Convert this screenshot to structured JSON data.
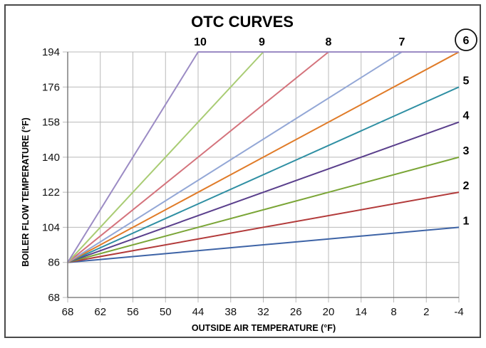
{
  "chart_data": {
    "type": "line",
    "title": "OTC CURVES",
    "xlabel": "OUTSIDE AIR TEMPERATURE (°F)",
    "ylabel": "BOILER FLOW TEMPERATURE (°F)",
    "x_ticks": [
      68,
      62,
      56,
      50,
      44,
      38,
      32,
      26,
      20,
      14,
      8,
      2,
      -4
    ],
    "x_tick_labels": [
      "68",
      "62",
      "56",
      "50",
      "44",
      "38",
      "32",
      "26",
      "20",
      "14",
      "8",
      "2",
      "-4"
    ],
    "y_ticks": [
      68,
      86,
      104,
      122,
      140,
      158,
      176,
      194
    ],
    "y_tick_labels": [
      "68",
      "86",
      "104",
      "122",
      "140",
      "158",
      "176",
      "194"
    ],
    "xlim": [
      68,
      -4
    ],
    "ylim": [
      68,
      194
    ],
    "grid": true,
    "highlighted_curve": "6",
    "series": [
      {
        "name": "1",
        "color": "#3d63a6",
        "x": [
          68,
          -4
        ],
        "y": [
          86,
          104
        ]
      },
      {
        "name": "2",
        "color": "#b23a3a",
        "x": [
          68,
          -4
        ],
        "y": [
          86,
          122
        ]
      },
      {
        "name": "3",
        "color": "#7aa536",
        "x": [
          68,
          -4
        ],
        "y": [
          86,
          140
        ]
      },
      {
        "name": "4",
        "color": "#5a3f8c",
        "x": [
          68,
          -4
        ],
        "y": [
          86,
          158
        ]
      },
      {
        "name": "5",
        "color": "#2f8fa3",
        "x": [
          68,
          -4
        ],
        "y": [
          86,
          176
        ]
      },
      {
        "name": "6",
        "color": "#e07b28",
        "x": [
          68,
          -4
        ],
        "y": [
          86,
          194
        ]
      },
      {
        "name": "7",
        "color": "#93a7d6",
        "x": [
          68,
          6.5,
          -4
        ],
        "y": [
          86,
          194,
          194
        ]
      },
      {
        "name": "8",
        "color": "#d4737c",
        "x": [
          68,
          20,
          -4
        ],
        "y": [
          86,
          194,
          194
        ]
      },
      {
        "name": "9",
        "color": "#a9cc74",
        "x": [
          68,
          32,
          -4
        ],
        "y": [
          86,
          194,
          194
        ]
      },
      {
        "name": "10",
        "color": "#9b8bc4",
        "x": [
          68,
          44,
          -4
        ],
        "y": [
          86,
          194,
          194
        ]
      }
    ],
    "curve_labels": [
      {
        "text": "1",
        "x": -4,
        "y": 104
      },
      {
        "text": "2",
        "x": -4,
        "y": 122
      },
      {
        "text": "3",
        "x": -4,
        "y": 140
      },
      {
        "text": "4",
        "x": -4,
        "y": 158
      },
      {
        "text": "5",
        "x": -4,
        "y": 176
      },
      {
        "text": "6",
        "x": -4,
        "y": 194
      },
      {
        "text": "7",
        "x": 6.5,
        "y": 194
      },
      {
        "text": "8",
        "x": 20,
        "y": 194
      },
      {
        "text": "9",
        "x": 32,
        "y": 194
      },
      {
        "text": "10",
        "x": 44,
        "y": 194
      }
    ]
  }
}
